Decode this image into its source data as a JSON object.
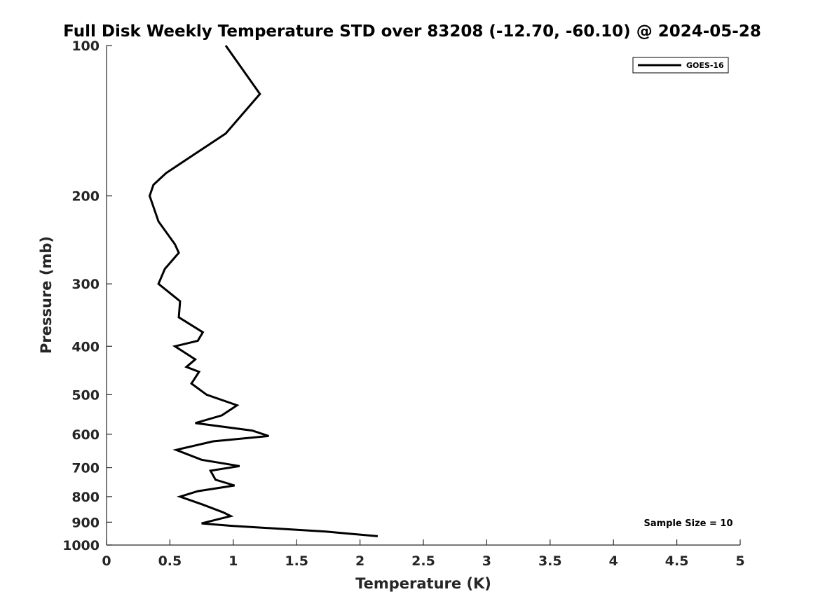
{
  "chart_data": {
    "type": "line",
    "title": "Full Disk Weekly Temperature STD over 83208 (-12.70, -60.10) @ 2024-05-28",
    "xlabel": "Temperature (K)",
    "ylabel": "Pressure (mb)",
    "xlim": [
      0,
      5
    ],
    "ylim": [
      1000,
      100
    ],
    "yscale": "log",
    "y_reversed": true,
    "grid": false,
    "legend_position": "top-right",
    "x_ticks": [
      "0",
      "0.5",
      "1",
      "1.5",
      "2",
      "2.5",
      "3",
      "3.5",
      "4",
      "4.5",
      "5"
    ],
    "y_ticks": [
      "100",
      "200",
      "300",
      "400",
      "500",
      "600",
      "700",
      "800",
      "900",
      "1000"
    ],
    "series": [
      {
        "name": "GOES-16",
        "color": "#000000",
        "points": [
          [
            0.94,
            100
          ],
          [
            1.21,
            125
          ],
          [
            0.94,
            150
          ],
          [
            0.47,
            180
          ],
          [
            0.37,
            190
          ],
          [
            0.34,
            200
          ],
          [
            0.41,
            225
          ],
          [
            0.54,
            250
          ],
          [
            0.57,
            260
          ],
          [
            0.46,
            280
          ],
          [
            0.41,
            300
          ],
          [
            0.58,
            325
          ],
          [
            0.57,
            350
          ],
          [
            0.76,
            375
          ],
          [
            0.72,
            390
          ],
          [
            0.54,
            400
          ],
          [
            0.7,
            425
          ],
          [
            0.63,
            440
          ],
          [
            0.73,
            450
          ],
          [
            0.67,
            475
          ],
          [
            0.79,
            500
          ],
          [
            1.03,
            525
          ],
          [
            0.91,
            550
          ],
          [
            0.7,
            570
          ],
          [
            1.15,
            590
          ],
          [
            1.28,
            605
          ],
          [
            0.84,
            620
          ],
          [
            0.55,
            645
          ],
          [
            0.75,
            675
          ],
          [
            1.05,
            695
          ],
          [
            0.82,
            710
          ],
          [
            0.86,
            740
          ],
          [
            1.01,
            760
          ],
          [
            0.72,
            780
          ],
          [
            0.58,
            800
          ],
          [
            0.76,
            830
          ],
          [
            0.92,
            860
          ],
          [
            0.98,
            875
          ],
          [
            0.75,
            905
          ],
          [
            0.98,
            915
          ],
          [
            1.73,
            940
          ],
          [
            2.14,
            960
          ]
        ]
      }
    ],
    "annotations": [
      "Sample Size = 10"
    ]
  }
}
